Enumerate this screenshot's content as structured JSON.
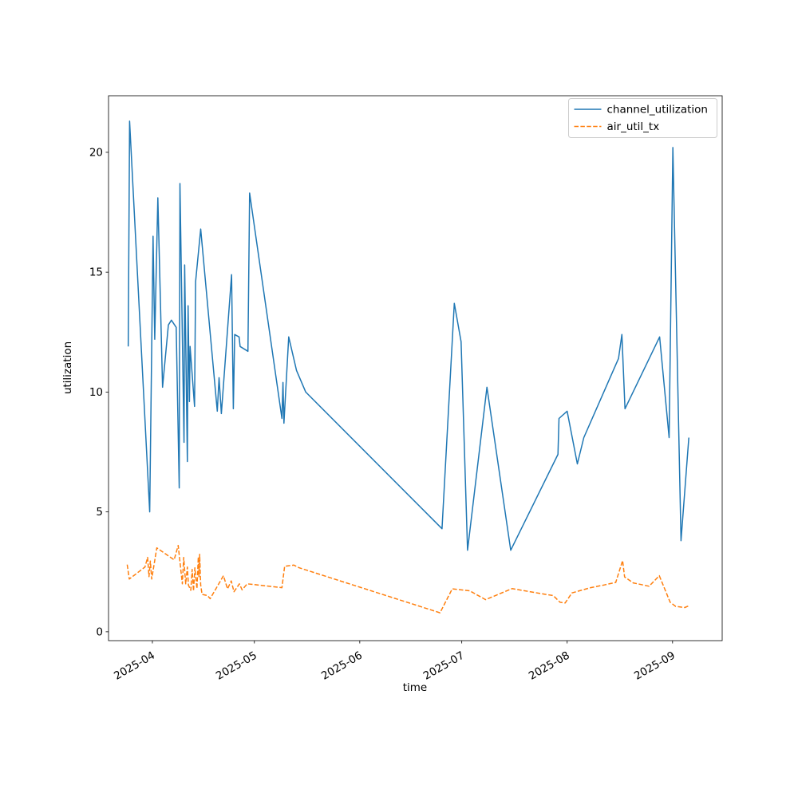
{
  "figure": {
    "background": "#ffffff",
    "text_color": "#000000",
    "spine_color": "#000000"
  },
  "chart_data": {
    "type": "line",
    "xlabel": "time",
    "ylabel": "utilization",
    "grid": false,
    "x_epoch": "2025-03-24",
    "x_unit": "days since 2025-03-24",
    "xlim_days": [
      -4.9,
      175.6
    ],
    "ylim": [
      -0.37,
      22.36
    ],
    "x_ticks": [
      {
        "day": 8,
        "label": "2025-04"
      },
      {
        "day": 38,
        "label": "2025-05"
      },
      {
        "day": 69,
        "label": "2025-06"
      },
      {
        "day": 99,
        "label": "2025-07"
      },
      {
        "day": 130,
        "label": "2025-08"
      },
      {
        "day": 161,
        "label": "2025-09"
      }
    ],
    "y_ticks": [
      0,
      5,
      10,
      15,
      20
    ],
    "legend": {
      "position": "upper right",
      "entries": [
        {
          "label": "channel_utilization",
          "color": "#1f77b4",
          "style": "solid"
        },
        {
          "label": "air_util_tx",
          "color": "#ff7f0e",
          "style": "dashed"
        }
      ]
    },
    "series": [
      {
        "name": "channel_utilization",
        "color": "#1f77b4",
        "line_style": "solid",
        "line_width": 1.5,
        "points": [
          [
            0.9,
            11.9
          ],
          [
            1.3,
            21.3
          ],
          [
            7.2,
            5.0
          ],
          [
            8.2,
            16.5
          ],
          [
            8.7,
            12.2
          ],
          [
            9.6,
            18.1
          ],
          [
            11.0,
            10.2
          ],
          [
            12.7,
            12.8
          ],
          [
            13.6,
            13.0
          ],
          [
            15.0,
            12.7
          ],
          [
            15.9,
            6.0
          ],
          [
            16.1,
            18.7
          ],
          [
            17.3,
            7.9
          ],
          [
            17.5,
            15.3
          ],
          [
            18.3,
            7.1
          ],
          [
            18.5,
            13.6
          ],
          [
            18.9,
            9.6
          ],
          [
            19.1,
            11.9
          ],
          [
            20.4,
            9.4
          ],
          [
            20.7,
            14.6
          ],
          [
            22.2,
            16.8
          ],
          [
            27.1,
            9.2
          ],
          [
            27.6,
            10.6
          ],
          [
            28.3,
            9.1
          ],
          [
            31.3,
            14.9
          ],
          [
            31.8,
            9.3
          ],
          [
            32.2,
            12.4
          ],
          [
            33.5,
            12.3
          ],
          [
            33.8,
            11.9
          ],
          [
            36.1,
            11.7
          ],
          [
            36.6,
            18.3
          ],
          [
            46.1,
            8.9
          ],
          [
            46.4,
            10.4
          ],
          [
            46.7,
            8.7
          ],
          [
            48.1,
            12.3
          ],
          [
            50.4,
            10.9
          ],
          [
            53.1,
            10.0
          ],
          [
            93.2,
            4.3
          ],
          [
            96.8,
            13.7
          ],
          [
            98.8,
            12.1
          ],
          [
            100.7,
            3.4
          ],
          [
            106.4,
            10.2
          ],
          [
            113.4,
            3.4
          ],
          [
            127.3,
            7.4
          ],
          [
            127.6,
            8.9
          ],
          [
            130.0,
            9.2
          ],
          [
            133.0,
            7.0
          ],
          [
            134.9,
            8.1
          ],
          [
            145.1,
            11.4
          ],
          [
            146.1,
            12.4
          ],
          [
            147.0,
            9.3
          ],
          [
            157.2,
            12.3
          ],
          [
            160.0,
            8.1
          ],
          [
            161.1,
            20.2
          ],
          [
            163.5,
            3.8
          ],
          [
            165.8,
            8.1
          ]
        ]
      },
      {
        "name": "air_util_tx",
        "color": "#ff7f0e",
        "line_style": "dashed",
        "line_width": 1.5,
        "points": [
          [
            0.6,
            2.8
          ],
          [
            1.2,
            2.2
          ],
          [
            5.8,
            2.7
          ],
          [
            6.6,
            3.1
          ],
          [
            7.0,
            2.3
          ],
          [
            7.4,
            2.95
          ],
          [
            7.8,
            2.2
          ],
          [
            9.3,
            3.5
          ],
          [
            14.4,
            3.0
          ],
          [
            15.6,
            3.6
          ],
          [
            16.8,
            2.0
          ],
          [
            17.2,
            3.1
          ],
          [
            17.8,
            2.0
          ],
          [
            18.3,
            2.7
          ],
          [
            18.6,
            1.95
          ],
          [
            19.3,
            1.73
          ],
          [
            19.7,
            2.6
          ],
          [
            20.1,
            1.7
          ],
          [
            20.5,
            2.67
          ],
          [
            21.1,
            1.8
          ],
          [
            21.5,
            3.12
          ],
          [
            21.7,
            2.3
          ],
          [
            21.9,
            3.23
          ],
          [
            22.2,
            1.95
          ],
          [
            22.6,
            1.56
          ],
          [
            24.2,
            1.51
          ],
          [
            25.0,
            1.38
          ],
          [
            28.9,
            2.34
          ],
          [
            30.1,
            1.79
          ],
          [
            31.2,
            2.12
          ],
          [
            32.0,
            1.67
          ],
          [
            33.6,
            2.0
          ],
          [
            34.4,
            1.75
          ],
          [
            35.9,
            2.0
          ],
          [
            46.1,
            1.84
          ],
          [
            46.9,
            2.73
          ],
          [
            49.6,
            2.78
          ],
          [
            51.2,
            2.67
          ],
          [
            92.6,
            0.79
          ],
          [
            96.2,
            1.79
          ],
          [
            101.3,
            1.71
          ],
          [
            106.0,
            1.34
          ],
          [
            113.8,
            1.8
          ],
          [
            123.6,
            1.56
          ],
          [
            125.9,
            1.51
          ],
          [
            127.9,
            1.23
          ],
          [
            129.4,
            1.2
          ],
          [
            131.4,
            1.62
          ],
          [
            136.9,
            1.84
          ],
          [
            140.8,
            1.95
          ],
          [
            144.3,
            2.06
          ],
          [
            146.3,
            2.97
          ],
          [
            146.9,
            2.29
          ],
          [
            149.4,
            2.04
          ],
          [
            154.1,
            1.9
          ],
          [
            157.1,
            2.34
          ],
          [
            160.3,
            1.23
          ],
          [
            161.9,
            1.06
          ],
          [
            164.6,
            1.01
          ],
          [
            165.9,
            1.09
          ]
        ]
      }
    ]
  }
}
